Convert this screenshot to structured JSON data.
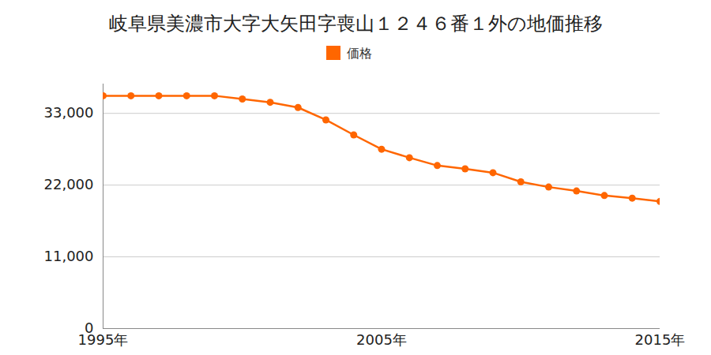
{
  "chart_data": {
    "type": "line",
    "title": "岐阜県美濃市大字大矢田字喪山１２４６番１外の地価推移",
    "x": [
      1995,
      1996,
      1997,
      1998,
      1999,
      2000,
      2001,
      2002,
      2003,
      2004,
      2005,
      2006,
      2007,
      2008,
      2009,
      2010,
      2011,
      2012,
      2013,
      2014,
      2015
    ],
    "series": [
      {
        "name": "価格",
        "color": "#ff6600",
        "marker": "circle",
        "values": [
          35700,
          35700,
          35700,
          35700,
          35700,
          35200,
          34700,
          33900,
          32000,
          29700,
          27500,
          26200,
          25000,
          24500,
          23900,
          22500,
          21700,
          21100,
          20400,
          20000,
          19500
        ]
      }
    ],
    "xlim": [
      1995,
      2015
    ],
    "xticks": [
      {
        "value": 1995,
        "label": "1995年"
      },
      {
        "value": 2005,
        "label": "2005年"
      },
      {
        "value": 2015,
        "label": "2015年"
      }
    ],
    "ylim": [
      0,
      37500
    ],
    "yticks": [
      0,
      {
        "value": 11000,
        "label": "11,000"
      },
      {
        "value": 22000,
        "label": "22,000"
      },
      {
        "value": 33000,
        "label": "33,000"
      }
    ],
    "grid": true,
    "legend": "top"
  }
}
